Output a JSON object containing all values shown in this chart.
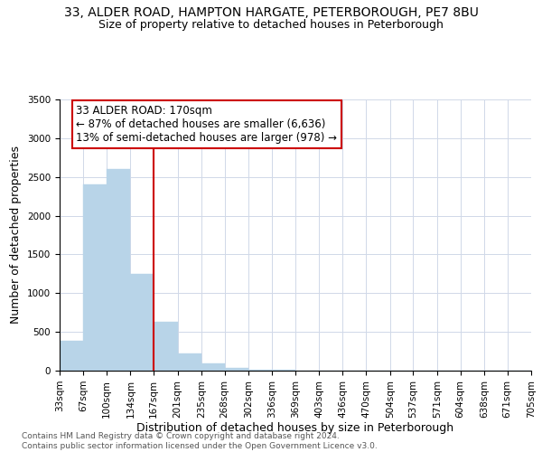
{
  "title": "33, ALDER ROAD, HAMPTON HARGATE, PETERBOROUGH, PE7 8BU",
  "subtitle": "Size of property relative to detached houses in Peterborough",
  "xlabel": "Distribution of detached houses by size in Peterborough",
  "ylabel": "Number of detached properties",
  "footer_line1": "Contains HM Land Registry data © Crown copyright and database right 2024.",
  "footer_line2": "Contains public sector information licensed under the Open Government Licence v3.0.",
  "bar_edges": [
    33,
    67,
    100,
    134,
    167,
    201,
    235,
    268,
    302,
    336,
    369,
    403,
    436,
    470,
    504,
    537,
    571,
    604,
    638,
    671,
    705
  ],
  "bar_heights": [
    380,
    2400,
    2600,
    1250,
    630,
    220,
    90,
    40,
    15,
    8,
    5,
    3,
    2,
    1,
    1,
    0,
    0,
    0,
    0,
    0
  ],
  "bar_color": "#b8d4e8",
  "bar_edgecolor": "#b8d4e8",
  "vline_x": 167,
  "vline_color": "#cc0000",
  "annotation_line1": "33 ALDER ROAD: 170sqm",
  "annotation_line2": "← 87% of detached houses are smaller (6,636)",
  "annotation_line3": "13% of semi-detached houses are larger (978) →",
  "annotation_box_color": "#cc0000",
  "annotation_text_color": "#000000",
  "ylim": [
    0,
    3500
  ],
  "yticks": [
    0,
    500,
    1000,
    1500,
    2000,
    2500,
    3000,
    3500
  ],
  "xtick_labels": [
    "33sqm",
    "67sqm",
    "100sqm",
    "134sqm",
    "167sqm",
    "201sqm",
    "235sqm",
    "268sqm",
    "302sqm",
    "336sqm",
    "369sqm",
    "403sqm",
    "436sqm",
    "470sqm",
    "504sqm",
    "537sqm",
    "571sqm",
    "604sqm",
    "638sqm",
    "671sqm",
    "705sqm"
  ],
  "title_fontsize": 10,
  "subtitle_fontsize": 9,
  "axis_fontsize": 9,
  "tick_fontsize": 7.5,
  "ylabel_fontsize": 9,
  "annotation_fontsize": 8.5
}
